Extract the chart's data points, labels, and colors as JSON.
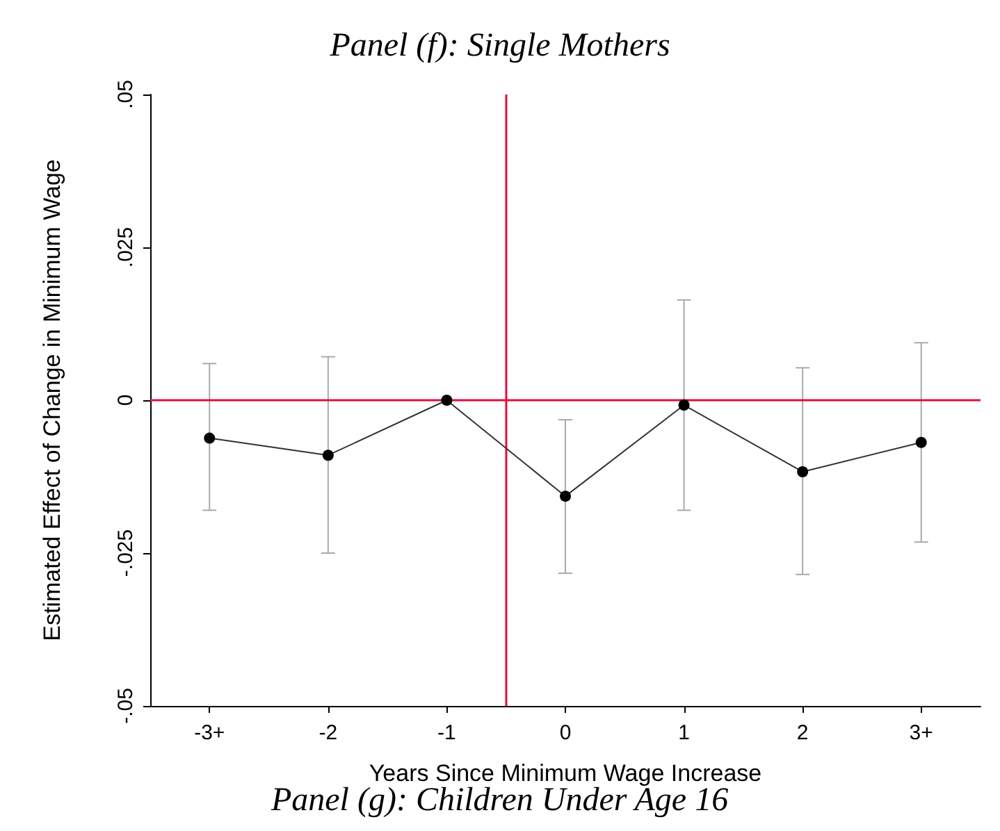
{
  "chart_data": {
    "type": "line",
    "title": "Panel (f): Single Mothers",
    "xlabel": "Years Since Minimum Wage Increase",
    "ylabel": "Estimated Effect of Change in Minimum Wage",
    "x": [
      -3,
      -2,
      -1,
      0,
      1,
      2,
      3
    ],
    "series": [
      {
        "color": "#000000",
        "values": [
          -0.0062,
          -0.009,
          0,
          -0.0157,
          -0.0008,
          -0.0117,
          -0.0069
        ],
        "errors": [
          [
            -0.018,
            0.006
          ],
          [
            -0.025,
            0.0071
          ],
          null,
          [
            -0.0283,
            -0.0032
          ],
          [
            -0.018,
            0.0164
          ],
          [
            -0.0285,
            0.0053
          ],
          [
            -0.0232,
            0.0094
          ]
        ]
      }
    ],
    "xlim": [
      -3.5,
      3.5
    ],
    "xticks": [
      {
        "value": -3,
        "label": "-3+"
      },
      -2,
      -1,
      0,
      1,
      2,
      {
        "value": 3,
        "label": "3+"
      }
    ],
    "ylim": [
      -0.05,
      0.05
    ],
    "yticks": [
      {
        "value": -0.05,
        "label": "-.05"
      },
      {
        "value": -0.025,
        "label": "-.025"
      },
      0,
      {
        "value": 0.025,
        "label": ".025"
      },
      {
        "value": 0.05,
        "label": ".05"
      }
    ],
    "ref_lines": [
      {
        "axis": "y",
        "value": 0,
        "color": "#e0103e"
      },
      {
        "axis": "x",
        "value": -0.5,
        "color": "#e0103e"
      }
    ],
    "marker": "circle",
    "line_style": "solid",
    "annotations": [
      "Panel (g): Children Under Age 16"
    ]
  }
}
